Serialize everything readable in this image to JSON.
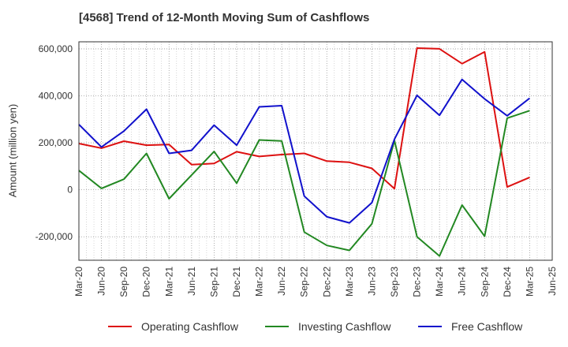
{
  "chart_data": {
    "type": "line",
    "title": "[4568]  Trend of 12-Month Moving Sum of Cashflows",
    "xlabel": "",
    "ylabel": "Amount (million yen)",
    "categories": [
      "Mar-20",
      "Jun-20",
      "Sep-20",
      "Dec-20",
      "Mar-21",
      "Jun-21",
      "Sep-21",
      "Dec-21",
      "Mar-22",
      "Jun-22",
      "Sep-22",
      "Dec-22",
      "Mar-23",
      "Jun-23",
      "Sep-23",
      "Dec-23",
      "Mar-24",
      "Jun-24",
      "Sep-24",
      "Dec-24",
      "Mar-25",
      "Jun-25"
    ],
    "x_tick_labels": [
      "Mar-20",
      "Jun-20",
      "Sep-20",
      "Dec-20",
      "Mar-21",
      "Jun-21",
      "Sep-21",
      "Dec-21",
      "Mar-22",
      "Jun-22",
      "Sep-22",
      "Dec-22",
      "Mar-23",
      "Jun-23",
      "Sep-23",
      "Dec-23",
      "Mar-24",
      "Jun-24",
      "Sep-24",
      "Dec-24",
      "Mar-25",
      "Jun-25"
    ],
    "y_tick_labels": [
      "-200,000",
      "0",
      "200,000",
      "400,000",
      "600,000"
    ],
    "y_ticks": [
      -200000,
      0,
      200000,
      400000,
      600000
    ],
    "ylim": [
      -300000,
      630000
    ],
    "grid": true,
    "legend_position": "bottom",
    "series": [
      {
        "name": "Operating Cashflow",
        "color": "#dd1111",
        "values": [
          197000,
          177000,
          207000,
          190000,
          193000,
          107000,
          112000,
          162000,
          142000,
          150000,
          155000,
          122000,
          117000,
          91000,
          5000,
          603000,
          600000,
          537000,
          587000,
          12000,
          53000,
          null
        ]
      },
      {
        "name": "Investing Cashflow",
        "color": "#228822",
        "values": [
          82000,
          6000,
          45000,
          155000,
          -38000,
          63000,
          163000,
          28000,
          212000,
          208000,
          -180000,
          -237000,
          -258000,
          -145000,
          210000,
          -200000,
          -282000,
          -65000,
          -198000,
          305000,
          337000,
          null
        ]
      },
      {
        "name": "Free Cashflow",
        "color": "#1111cc",
        "values": [
          278000,
          182000,
          250000,
          343000,
          155000,
          168000,
          275000,
          190000,
          353000,
          358000,
          -27000,
          -115000,
          -141000,
          -55000,
          215000,
          402000,
          317000,
          470000,
          387000,
          315000,
          390000,
          null
        ]
      }
    ]
  }
}
